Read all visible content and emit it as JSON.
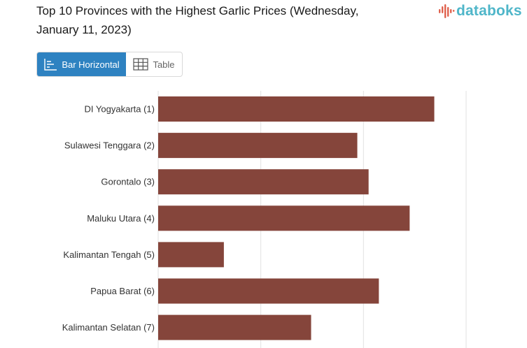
{
  "header": {
    "title_line1": "Top 10 Provinces with the Highest Garlic Prices (Wednesday,",
    "title_line2": "January 11, 2023)",
    "logo_text": "databoks"
  },
  "view_toggle": {
    "bar_label": "Bar Horizontal",
    "table_label": "Table",
    "active": "bar"
  },
  "colors": {
    "bar": "#85453b",
    "active_button": "#2e82c1",
    "logo": "#4fb6c9",
    "logo_mark": "#e0624e",
    "grid": "#e2e2e2"
  },
  "chart_data": {
    "type": "bar",
    "orientation": "horizontal",
    "title": "Top 10 Provinces with the Highest Garlic Prices (Wednesday, January 11, 2023)",
    "categories": [
      "DI Yogyakarta (1)",
      "Sulawesi Tenggara (2)",
      "Gorontalo (3)",
      "Maluku Utara (4)",
      "Kalimantan Tengah (5)",
      "Papua Barat (6)",
      "Kalimantan Selatan (7)"
    ],
    "values": [
      269,
      194,
      205,
      245,
      64,
      215,
      149
    ],
    "xlim": [
      0,
      300
    ],
    "grid": true,
    "legend": "none"
  }
}
